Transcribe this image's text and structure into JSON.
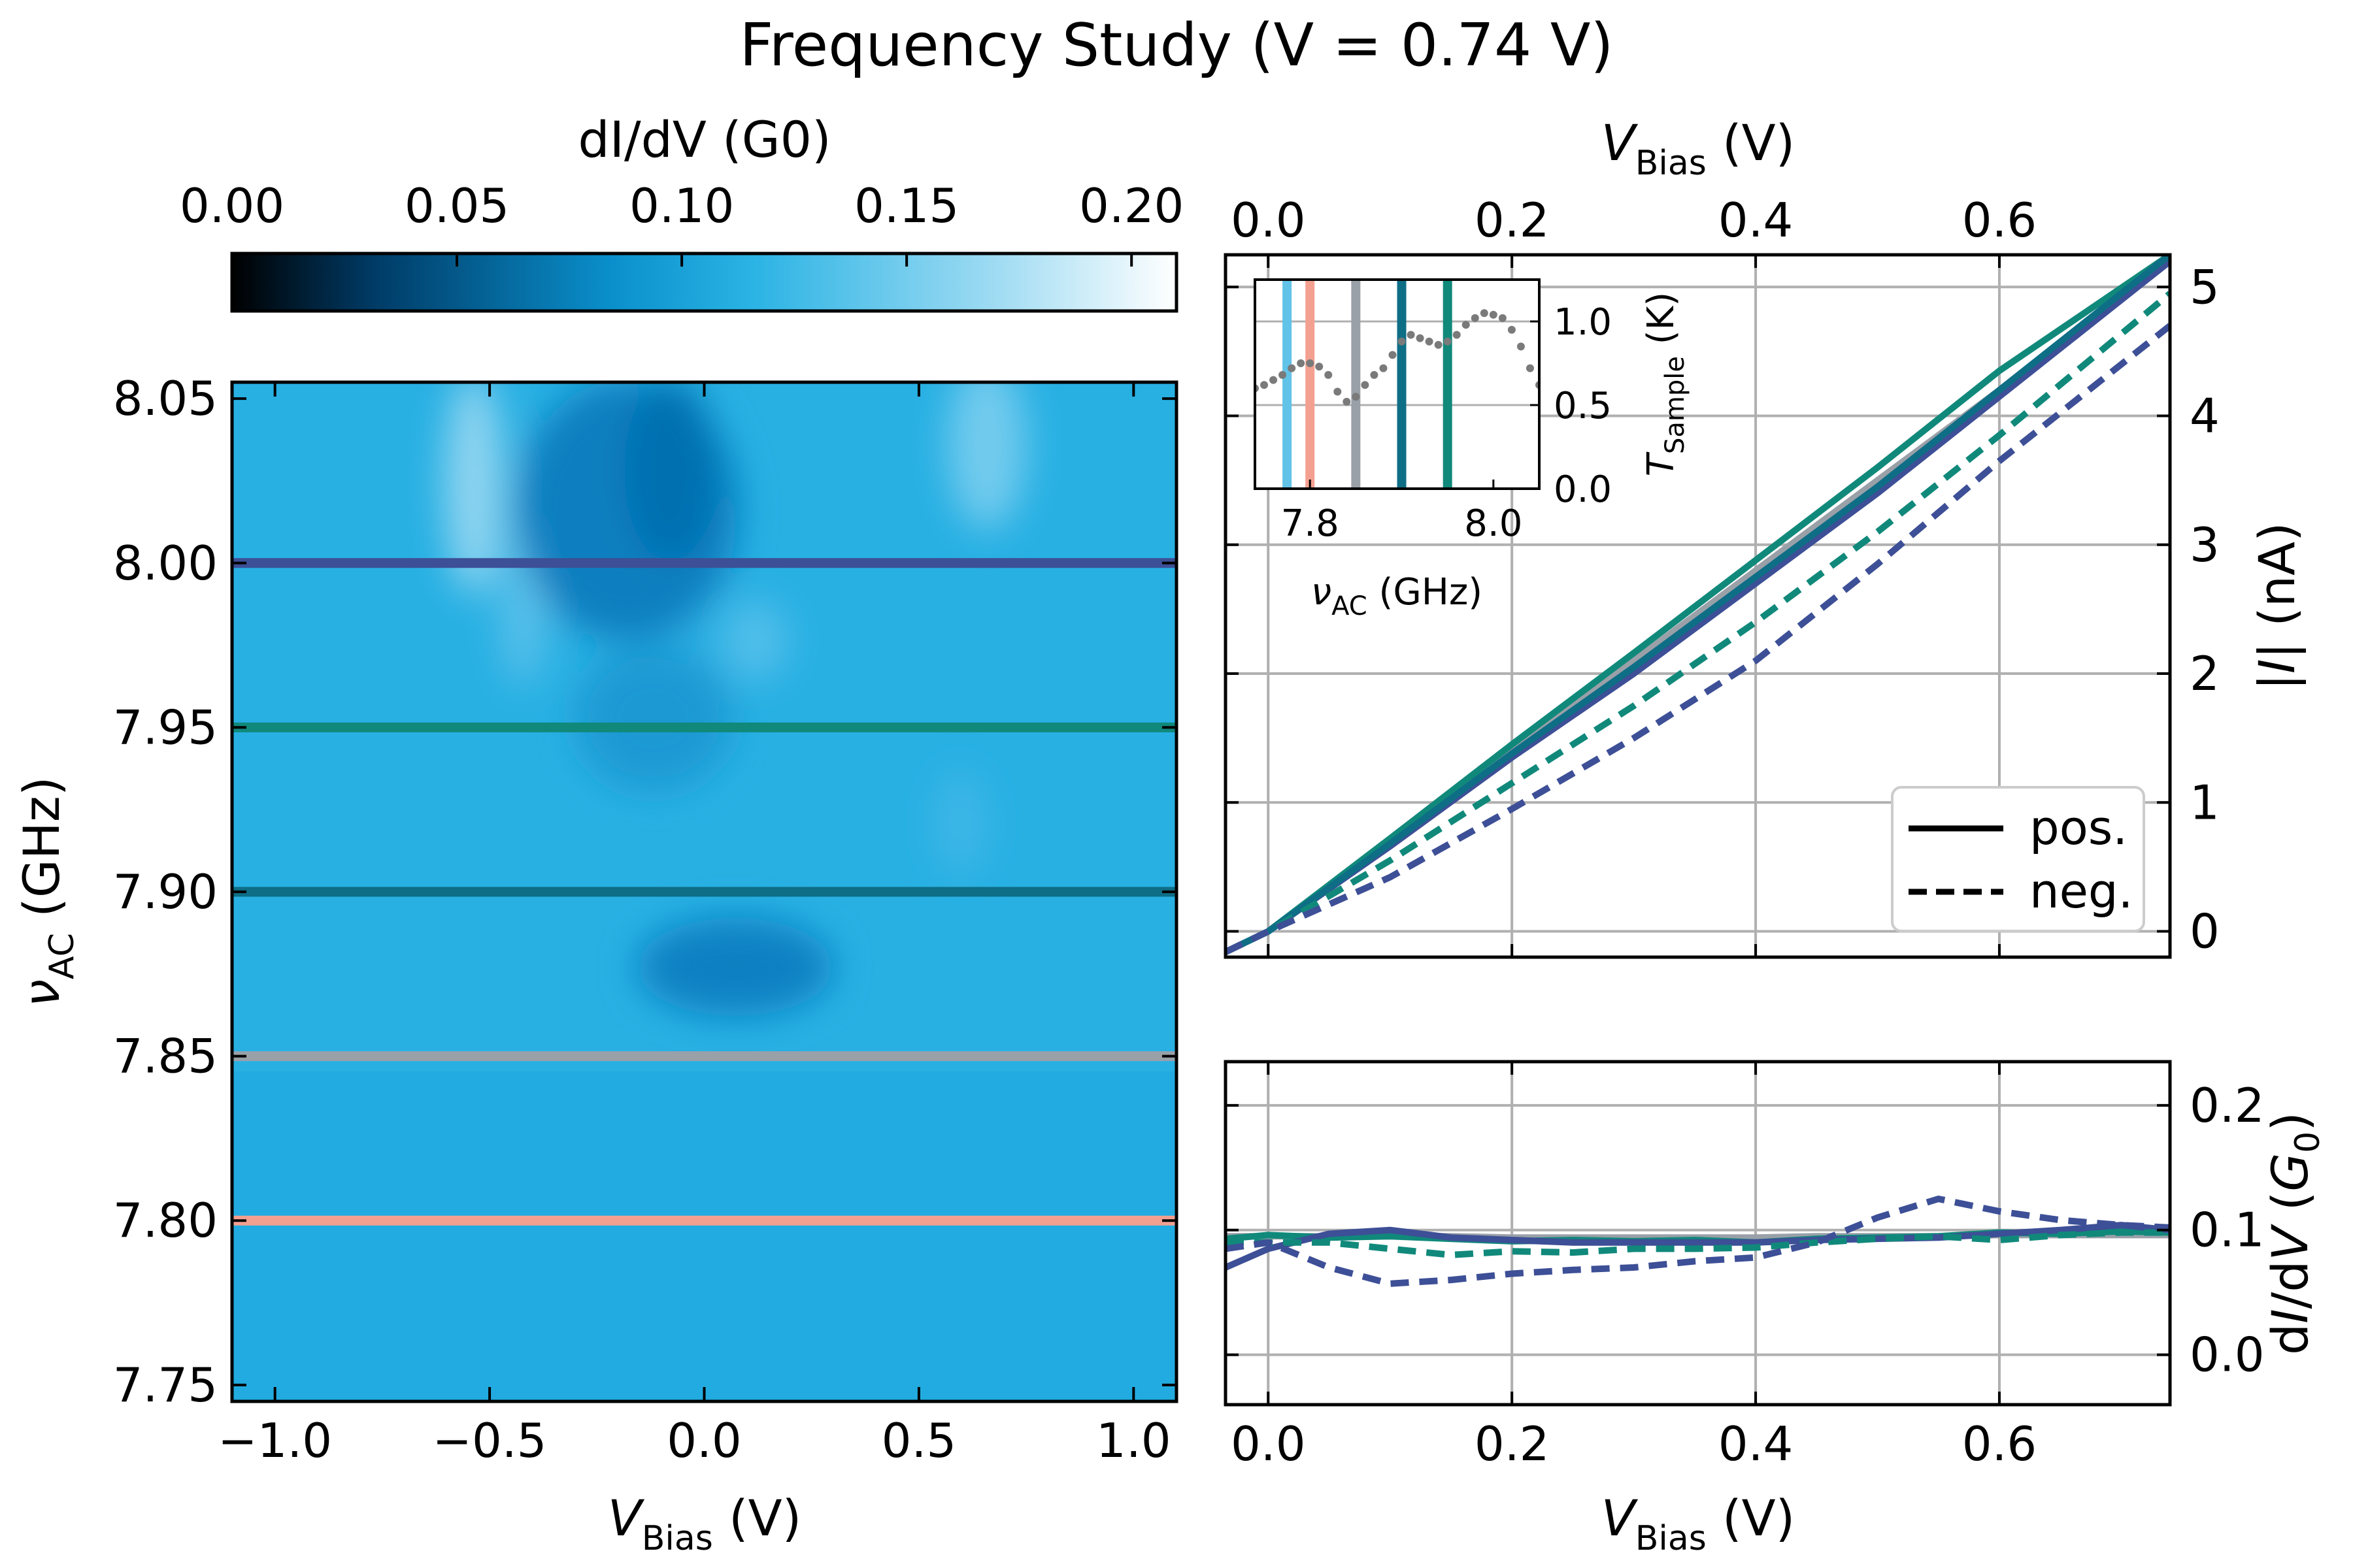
{
  "title": "Frequency Study (V = 0.74 V)",
  "colors": {
    "c780": "#f4a091",
    "c785": "#9aa0a8",
    "c790": "#0e6e86",
    "c795": "#10897b",
    "c800": "#3d4f96",
    "c775": "#62c3e8",
    "grid": "#b0b0b0"
  },
  "chart_data": [
    {
      "type": "heatmap",
      "title": "",
      "xlabel": "V_Bias (V)",
      "ylabel": "ν_AC (GHz)",
      "xlim": [
        -1.1,
        1.1
      ],
      "ylim": [
        7.745,
        8.055
      ],
      "x_ticks": [
        "−1.0",
        "−0.5",
        "0.0",
        "0.5",
        "1.0"
      ],
      "y_ticks": [
        "7.75",
        "7.80",
        "7.85",
        "7.90",
        "7.95",
        "8.00",
        "8.05"
      ],
      "colorbar": {
        "label": "dI/dV (G0)",
        "range": [
          0.0,
          0.21
        ],
        "ticks": [
          "0.00",
          "0.05",
          "0.10",
          "0.15",
          "0.20"
        ],
        "colormap": [
          "#000000",
          "#003b66",
          "#0a8fcb",
          "#2ab3e4",
          "#9bdaf2",
          "#ffffff"
        ]
      },
      "background_value": 0.115,
      "features": [
        {
          "v": -0.5,
          "nu_range": [
            7.97,
            8.05
          ],
          "value": 0.15
        },
        {
          "v": -0.15,
          "nu_range": [
            7.96,
            8.04
          ],
          "value": 0.07
        },
        {
          "v": 0.15,
          "nu_range": [
            7.87,
            7.89
          ],
          "value": 0.08
        },
        {
          "v": 0.55,
          "nu_range": [
            7.98,
            8.05
          ],
          "value": 0.14
        }
      ],
      "marker_lines": [
        {
          "nu": 8.0,
          "color": "#3d4f96"
        },
        {
          "nu": 7.95,
          "color": "#10897b"
        },
        {
          "nu": 7.9,
          "color": "#0e6e86"
        },
        {
          "nu": 7.85,
          "color": "#9aa0a8"
        },
        {
          "nu": 7.8,
          "color": "#f4a091"
        }
      ]
    },
    {
      "type": "line",
      "title": "",
      "xlabel": "V_Bias (V)",
      "ylabel": "|I| (nA)",
      "xlim": [
        -0.035,
        0.74
      ],
      "ylim": [
        -0.2,
        5.25
      ],
      "x_ticks": [
        "0.0",
        "0.2",
        "0.4",
        "0.6"
      ],
      "y_ticks": [
        "0",
        "1",
        "2",
        "3",
        "4",
        "5"
      ],
      "legend": {
        "position": "lower-right",
        "entries": [
          "pos.",
          "neg."
        ]
      },
      "x": [
        -0.035,
        0.0,
        0.1,
        0.2,
        0.3,
        0.4,
        0.5,
        0.6,
        0.74
      ],
      "series": [
        {
          "color": "#9aa0a8",
          "style": "solid",
          "values": [
            -0.16,
            0.0,
            0.7,
            1.4,
            2.1,
            2.8,
            3.5,
            4.2,
            5.2
          ]
        },
        {
          "color": "#10897b",
          "style": "solid",
          "values": [
            -0.16,
            0.0,
            0.72,
            1.45,
            2.16,
            2.88,
            3.6,
            4.35,
            5.25
          ]
        },
        {
          "color": "#3d4f96",
          "style": "solid",
          "values": [
            -0.16,
            0.0,
            0.66,
            1.35,
            2.0,
            2.7,
            3.4,
            4.15,
            5.2
          ]
        },
        {
          "color": "#0e6e86",
          "style": "solid",
          "values": [
            -0.16,
            0.0,
            0.68,
            1.38,
            2.05,
            2.75,
            3.45,
            4.2,
            5.25
          ]
        },
        {
          "color": "#10897b",
          "style": "dashed",
          "values": [
            -0.16,
            0.0,
            0.55,
            1.15,
            1.75,
            2.4,
            3.1,
            3.85,
            4.95
          ]
        },
        {
          "color": "#3d4f96",
          "style": "dashed",
          "values": [
            -0.16,
            0.0,
            0.42,
            0.95,
            1.5,
            2.1,
            2.85,
            3.65,
            4.7
          ]
        }
      ]
    },
    {
      "type": "scatter",
      "title": "",
      "xlabel": "ν_AC (GHz)",
      "ylabel": "T_Sample (K)",
      "xlim": [
        7.74,
        8.05
      ],
      "ylim": [
        0.0,
        1.25
      ],
      "x_ticks": [
        "7.8",
        "8.0"
      ],
      "y_ticks": [
        "0.0",
        "0.5",
        "1.0"
      ],
      "x": [
        7.74,
        7.75,
        7.76,
        7.77,
        7.78,
        7.79,
        7.8,
        7.81,
        7.82,
        7.83,
        7.84,
        7.85,
        7.86,
        7.87,
        7.88,
        7.89,
        7.9,
        7.91,
        7.92,
        7.93,
        7.94,
        7.95,
        7.96,
        7.97,
        7.98,
        7.99,
        8.0,
        8.01,
        8.02,
        8.03,
        8.04,
        8.05
      ],
      "values": [
        0.6,
        0.62,
        0.65,
        0.68,
        0.72,
        0.75,
        0.75,
        0.73,
        0.68,
        0.58,
        0.52,
        0.55,
        0.62,
        0.68,
        0.72,
        0.8,
        0.88,
        0.92,
        0.9,
        0.88,
        0.86,
        0.88,
        0.92,
        0.98,
        1.02,
        1.05,
        1.04,
        1.02,
        0.95,
        0.85,
        0.72,
        0.62
      ],
      "marker_lines": [
        {
          "nu": 7.775,
          "color": "#62c3e8"
        },
        {
          "nu": 7.8,
          "color": "#f4a091"
        },
        {
          "nu": 7.85,
          "color": "#9aa0a8"
        },
        {
          "nu": 7.9,
          "color": "#0e6e86"
        },
        {
          "nu": 7.95,
          "color": "#10897b"
        }
      ]
    },
    {
      "type": "line",
      "title": "",
      "xlabel": "V_Bias (V)",
      "ylabel": "dI/dV (G0)",
      "xlim": [
        -0.035,
        0.74
      ],
      "ylim": [
        -0.04,
        0.235
      ],
      "x_ticks": [
        "0.0",
        "0.2",
        "0.4",
        "0.6"
      ],
      "y_ticks": [
        "0.0",
        "0.1",
        "0.2"
      ],
      "x": [
        -0.035,
        0.0,
        0.05,
        0.1,
        0.15,
        0.2,
        0.25,
        0.3,
        0.35,
        0.4,
        0.45,
        0.5,
        0.55,
        0.6,
        0.65,
        0.7,
        0.74
      ],
      "series": [
        {
          "color": "#9aa0a8",
          "style": "solid",
          "values": [
            0.095,
            0.095,
            0.095,
            0.095,
            0.095,
            0.094,
            0.094,
            0.094,
            0.094,
            0.094,
            0.095,
            0.095,
            0.095,
            0.096,
            0.096,
            0.096,
            0.096
          ]
        },
        {
          "color": "#10897b",
          "style": "solid",
          "values": [
            0.093,
            0.096,
            0.094,
            0.095,
            0.093,
            0.091,
            0.092,
            0.091,
            0.092,
            0.09,
            0.093,
            0.094,
            0.095,
            0.098,
            0.097,
            0.099,
            0.098
          ]
        },
        {
          "color": "#3d4f96",
          "style": "solid",
          "values": [
            0.07,
            0.085,
            0.097,
            0.1,
            0.094,
            0.092,
            0.09,
            0.09,
            0.09,
            0.09,
            0.092,
            0.093,
            0.094,
            0.097,
            0.1,
            0.104,
            0.1
          ]
        },
        {
          "color": "#10897b",
          "style": "dashed",
          "values": [
            0.09,
            0.09,
            0.09,
            0.085,
            0.08,
            0.083,
            0.082,
            0.085,
            0.085,
            0.086,
            0.09,
            0.093,
            0.095,
            0.092,
            0.096,
            0.098,
            0.098
          ]
        },
        {
          "color": "#3d4f96",
          "style": "dashed",
          "values": [
            0.085,
            0.09,
            0.07,
            0.057,
            0.06,
            0.065,
            0.068,
            0.07,
            0.075,
            0.078,
            0.09,
            0.11,
            0.125,
            0.115,
            0.108,
            0.104,
            0.102
          ]
        }
      ]
    }
  ],
  "legend": {
    "pos_label": "pos.",
    "neg_label": "neg."
  }
}
